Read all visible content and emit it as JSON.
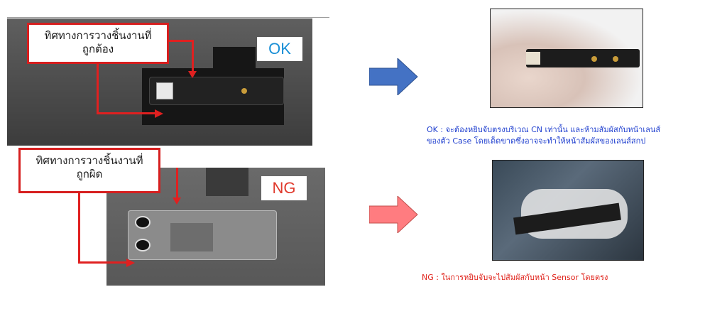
{
  "ok_panel": {
    "callout_text": "ทิศทางการวางชิ้นงานที่\nถูกต้อง",
    "tag": "OK"
  },
  "ng_panel": {
    "callout_text": "ทิศทางการวางชิ้นงานที่\nถูกผิด",
    "tag": "NG"
  },
  "arrows": {
    "ok_color": "#4472c4",
    "ng_color": "#ff7c80"
  },
  "captions": {
    "ok_line1": "OK : จะต้องหยิบจับตรงบริเวณ CN เท่านั้น และห้ามสัมผัสกับหน้าเลนส์",
    "ok_line2": "ของตัว Case โดยเด็ดขาดซึ่งอาจจะทำให้หน้าสัมผัสของเลนส์สกป",
    "ng_line": "NG :  ในการหยิบจับจะไปสัมผัสกับหน้า Sensor โดยตรง"
  },
  "colors": {
    "callout_border": "#d61f1f",
    "ok_caption": "#1f3fcf",
    "ng_caption": "#e0221a"
  }
}
